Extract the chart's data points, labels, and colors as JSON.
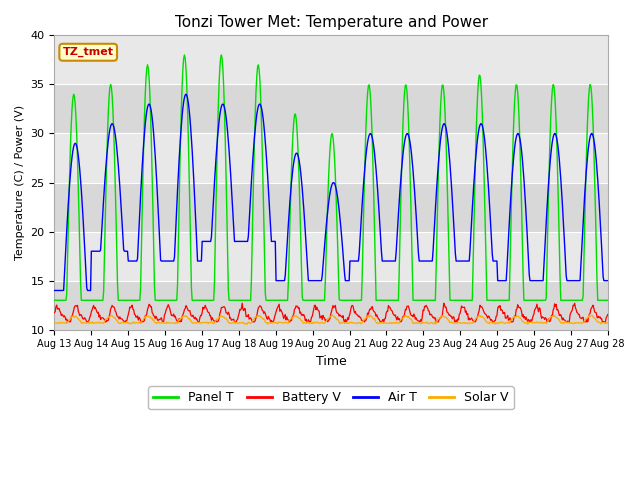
{
  "title": "Tonzi Tower Met: Temperature and Power",
  "xlabel": "Time",
  "ylabel": "Temperature (C) / Power (V)",
  "ylim": [
    10,
    40
  ],
  "tick_labels": [
    "Aug 13",
    "Aug 14",
    "Aug 15",
    "Aug 16",
    "Aug 17",
    "Aug 18",
    "Aug 19",
    "Aug 20",
    "Aug 21",
    "Aug 22",
    "Aug 23",
    "Aug 24",
    "Aug 25",
    "Aug 26",
    "Aug 27",
    "Aug 28"
  ],
  "legend_labels": [
    "Panel T",
    "Battery V",
    "Air T",
    "Solar V"
  ],
  "legend_colors": [
    "#00dd00",
    "#ff0000",
    "#0000ff",
    "#ffaa00"
  ],
  "annotation_text": "TZ_tmet",
  "annotation_color": "#cc0000",
  "annotation_bg": "#ffffcc",
  "annotation_border": "#cc8800",
  "panel_t_color": "#00dd00",
  "battery_v_color": "#ff0000",
  "air_t_color": "#0000ff",
  "solar_v_color": "#ffaa00",
  "fig_facecolor": "#ffffff",
  "plot_facecolor": "#e8e8e8",
  "band_colors": [
    "#e0e0e0",
    "#d0d0d0"
  ],
  "grid_color": "#ffffff",
  "yticks": [
    10,
    15,
    20,
    25,
    30,
    35,
    40
  ]
}
